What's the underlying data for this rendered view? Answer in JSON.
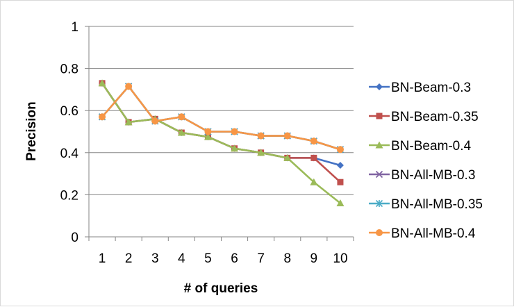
{
  "chart_data": {
    "type": "line",
    "categories": [
      "1",
      "2",
      "3",
      "4",
      "5",
      "6",
      "7",
      "8",
      "9",
      "10"
    ],
    "xlabel": "# of queries",
    "ylabel": "Precision",
    "ylim": [
      0,
      1
    ],
    "yticks": [
      "0",
      "0.2",
      "0.4",
      "0.6",
      "0.8",
      "1"
    ],
    "grid": true,
    "legend": "right",
    "series": [
      {
        "name": "BN-Beam-0.3",
        "color": "#4472c4",
        "marker": "diamond",
        "values": [
          0.73,
          0.545,
          0.56,
          0.495,
          0.475,
          0.42,
          0.4,
          0.375,
          0.375,
          0.34
        ]
      },
      {
        "name": "BN-Beam-0.35",
        "color": "#c0504d",
        "marker": "square",
        "values": [
          0.73,
          0.545,
          0.56,
          0.495,
          0.475,
          0.42,
          0.4,
          0.375,
          0.375,
          0.26
        ]
      },
      {
        "name": "BN-Beam-0.4",
        "color": "#9bbb59",
        "marker": "triangle",
        "values": [
          0.73,
          0.545,
          0.56,
          0.495,
          0.475,
          0.42,
          0.4,
          0.375,
          0.26,
          0.16
        ]
      },
      {
        "name": "BN-All-MB-0.3",
        "color": "#8064a2",
        "marker": "x",
        "values": [
          0.57,
          0.715,
          0.55,
          0.57,
          0.5,
          0.5,
          0.48,
          0.48,
          0.455,
          0.415
        ]
      },
      {
        "name": "BN-All-MB-0.35",
        "color": "#4bacc6",
        "marker": "star",
        "values": [
          0.57,
          0.715,
          0.55,
          0.57,
          0.5,
          0.5,
          0.48,
          0.48,
          0.455,
          0.415
        ]
      },
      {
        "name": "BN-All-MB-0.4",
        "color": "#f79646",
        "marker": "circle",
        "values": [
          0.57,
          0.715,
          0.55,
          0.57,
          0.5,
          0.5,
          0.48,
          0.48,
          0.455,
          0.415
        ]
      }
    ]
  }
}
